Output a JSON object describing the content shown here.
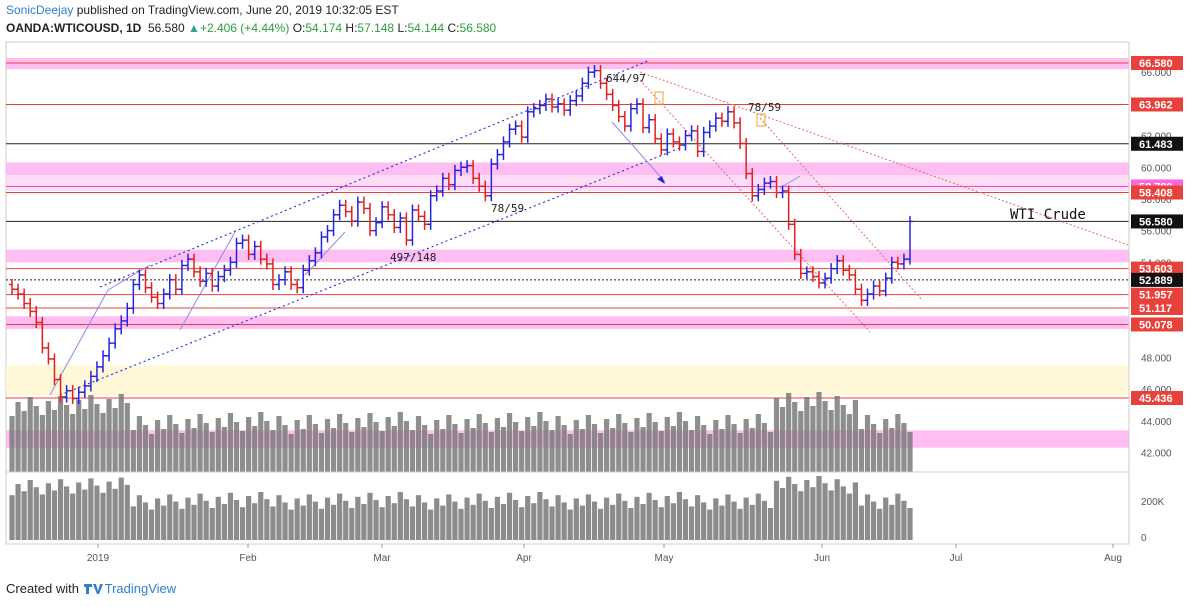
{
  "header": {
    "author": "SonicDeejay",
    "published": "published on TradingView.com, June 20, 2019 10:32:05 EST",
    "symbol": "OANDA:WTICOUSD, 1D",
    "last": "56.580",
    "change": "+2.406 (+4.44%)",
    "o_label": "O:",
    "o_val": "54.174",
    "h_label": "H:",
    "h_val": "57.148",
    "l_label": "L:",
    "l_val": "54.144",
    "c_label": "C:",
    "c_val": "56.580"
  },
  "footer": {
    "created": "Created with",
    "brand": "TradingView"
  },
  "colors": {
    "up": "#2424e0",
    "down": "#e02020",
    "level": "#e8403a",
    "zone_pink": "#ff80e0",
    "zone_yellow": "#fff5c8",
    "channel": "#2424e0",
    "volume": "#888888"
  },
  "chart_data": {
    "type": "ohlc",
    "symbol": "OANDA:WTICOUSD",
    "interval": "1D",
    "ylim": [
      41.0,
      67.5
    ],
    "x_axis_labels": [
      "2019",
      "Feb",
      "Mar",
      "Apr",
      "May",
      "Jun",
      "Jul",
      "Aug"
    ],
    "y_ticks": [
      "66.000",
      "64.000",
      "62.000",
      "60.000",
      "58.000",
      "56.000",
      "54.000",
      "52.000",
      "50.000",
      "48.000",
      "46.000",
      "44.000",
      "42.000"
    ],
    "price_tags": [
      {
        "label": "66.580",
        "value": 66.58,
        "bg": "#e8403a"
      },
      {
        "label": "63.962",
        "value": 63.962,
        "bg": "#e8403a"
      },
      {
        "label": "61.483",
        "value": 61.483,
        "bg": "#111111"
      },
      {
        "label": "58.789",
        "value": 58.789,
        "bg": "#ff66d9"
      },
      {
        "label": "58.408",
        "value": 58.408,
        "bg": "#e8403a"
      },
      {
        "label": "56.580",
        "value": 56.58,
        "bg": "#111111"
      },
      {
        "label": "53.603",
        "value": 53.603,
        "bg": "#e8403a"
      },
      {
        "label": "52.889",
        "value": 52.889,
        "bg": "#111111"
      },
      {
        "label": "51.957",
        "value": 51.957,
        "bg": "#e8403a"
      },
      {
        "label": "51.117",
        "value": 51.117,
        "bg": "#e8403a"
      },
      {
        "label": "50.078",
        "value": 50.078,
        "bg": "#e8403a"
      },
      {
        "label": "45.436",
        "value": 45.436,
        "bg": "#e8403a"
      }
    ],
    "annotations": [
      "644/97",
      "78/59",
      "78/59",
      "497/148",
      "WTI Crude"
    ],
    "volume_axis_labels": [
      "200K",
      "0"
    ],
    "ohlc_closes": [
      52.3,
      52.0,
      51.4,
      50.9,
      50.2,
      48.6,
      47.9,
      46.6,
      45.5,
      45.9,
      45.4,
      45.8,
      46.2,
      46.8,
      47.4,
      48.1,
      48.9,
      49.8,
      50.3,
      51.1,
      52.6,
      53.2,
      52.4,
      51.8,
      51.4,
      52.0,
      52.9,
      52.3,
      53.8,
      54.2,
      53.4,
      52.8,
      53.3,
      52.5,
      53.1,
      53.5,
      54.0,
      55.2,
      55.4,
      54.5,
      55.0,
      54.2,
      53.9,
      52.6,
      52.9,
      53.4,
      52.6,
      52.4,
      53.5,
      54.1,
      54.6,
      55.6,
      56.0,
      57.0,
      57.6,
      57.2,
      56.6,
      57.8,
      57.4,
      56.0,
      56.5,
      57.5,
      57.0,
      56.2,
      56.8,
      55.4,
      57.3,
      56.9,
      56.4,
      58.2,
      58.5,
      59.3,
      58.9,
      59.8,
      60.0,
      60.1,
      59.3,
      58.8,
      58.2,
      60.2,
      60.8,
      61.6,
      62.4,
      62.6,
      61.9,
      63.5,
      63.7,
      63.9,
      64.3,
      63.8,
      64.0,
      63.6,
      64.2,
      64.5,
      65.3,
      66.0,
      66.1,
      65.3,
      64.6,
      63.9,
      63.2,
      62.6,
      63.7,
      64.0,
      62.5,
      63.0,
      61.8,
      61.1,
      62.1,
      61.6,
      61.4,
      62.0,
      62.3,
      61.0,
      62.2,
      62.6,
      63.1,
      62.9,
      63.5,
      62.8,
      61.5,
      59.6,
      58.2,
      58.6,
      59.0,
      59.1,
      58.4,
      58.5,
      56.4,
      54.5,
      53.3,
      53.4,
      53.1,
      52.7,
      53.0,
      53.6,
      54.1,
      53.5,
      53.2,
      52.3,
      51.6,
      52.0,
      52.5,
      52.2,
      53.0,
      54.0,
      53.9,
      54.2,
      56.58
    ]
  }
}
